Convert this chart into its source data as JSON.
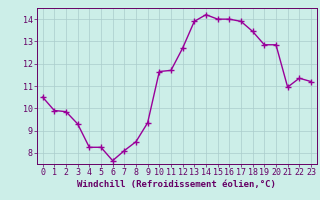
{
  "x": [
    0,
    1,
    2,
    3,
    4,
    5,
    6,
    7,
    8,
    9,
    10,
    11,
    12,
    13,
    14,
    15,
    16,
    17,
    18,
    19,
    20,
    21,
    22,
    23
  ],
  "y": [
    10.5,
    9.9,
    9.85,
    9.3,
    8.25,
    8.25,
    7.65,
    8.1,
    8.5,
    9.35,
    11.65,
    11.7,
    12.7,
    13.9,
    14.2,
    14.0,
    14.0,
    13.9,
    13.45,
    12.85,
    12.85,
    10.95,
    11.35,
    11.2
  ],
  "line_color": "#990099",
  "marker": "+",
  "marker_size": 4,
  "marker_linewidth": 1.0,
  "bg_color": "#cceee8",
  "grid_color": "#aacccc",
  "xlabel": "Windchill (Refroidissement éolien,°C)",
  "xlabel_color": "#660066",
  "xlabel_fontsize": 6.5,
  "tick_color": "#660066",
  "tick_fontsize": 6.0,
  "ylim": [
    7.5,
    14.5
  ],
  "xlim": [
    -0.5,
    23.5
  ],
  "yticks": [
    8,
    9,
    10,
    11,
    12,
    13,
    14
  ],
  "xticks": [
    0,
    1,
    2,
    3,
    4,
    5,
    6,
    7,
    8,
    9,
    10,
    11,
    12,
    13,
    14,
    15,
    16,
    17,
    18,
    19,
    20,
    21,
    22,
    23
  ],
  "line_width": 1.0,
  "spine_color": "#660066"
}
